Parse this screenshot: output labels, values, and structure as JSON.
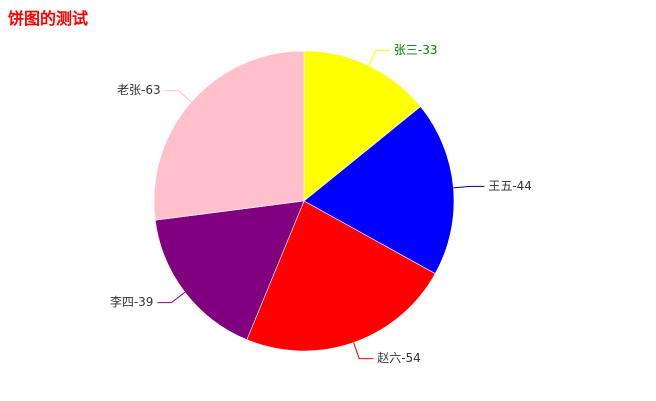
{
  "chart_data": {
    "type": "pie",
    "title": "饼图的测试",
    "title_color": "#ff0000",
    "start_angle_deg": 90,
    "direction": "clockwise",
    "slices": [
      {
        "name": "张三",
        "value": 33,
        "label": "张三-33",
        "color": "#ffff00",
        "line_color": "#ffff00",
        "label_color": "#008000"
      },
      {
        "name": "王五",
        "value": 44,
        "label": "王五-44",
        "color": "#0000ff",
        "line_color": "#000080",
        "label_color": "#333333"
      },
      {
        "name": "赵六",
        "value": 54,
        "label": "赵六-54",
        "color": "#ff0000",
        "line_color": "#ff0000",
        "label_color": "#333333"
      },
      {
        "name": "李四",
        "value": 39,
        "label": "李四-39",
        "color": "#800080",
        "line_color": "#800080",
        "label_color": "#333333"
      },
      {
        "name": "老张",
        "value": 63,
        "label": "老张-63",
        "color": "#ffc0cb",
        "line_color": "#ffc0cb",
        "label_color": "#333333"
      }
    ]
  }
}
